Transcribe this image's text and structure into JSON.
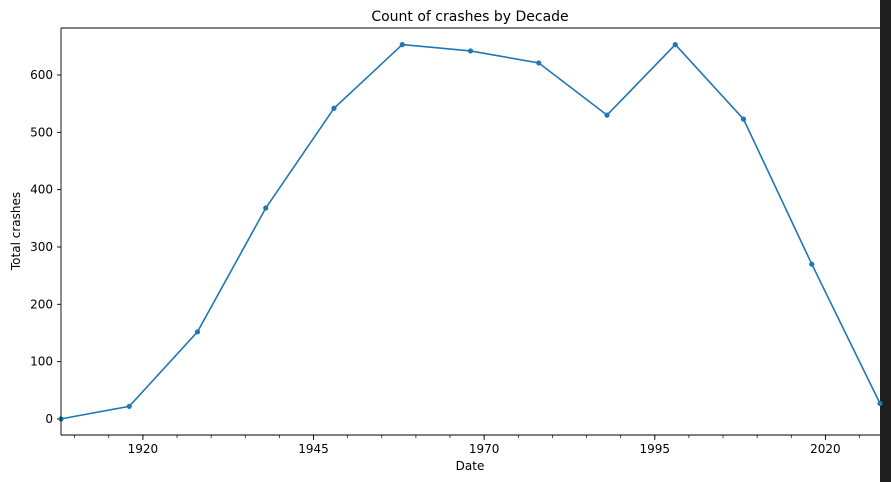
{
  "chart_data": {
    "type": "line",
    "title": "Count of crashes by Decade",
    "xlabel": "Date",
    "ylabel": "Total crashes",
    "x_ticks": [
      "1920",
      "1945",
      "1970",
      "1995",
      "2020"
    ],
    "y_ticks": [
      "0",
      "100",
      "200",
      "300",
      "400",
      "500",
      "600"
    ],
    "xlim": [
      1908,
      2028
    ],
    "ylim": [
      -28,
      682
    ],
    "grid": false,
    "series": [
      {
        "x": [
          1908,
          1918,
          1928,
          1938,
          1948,
          1958,
          1968,
          1978,
          1988,
          1998,
          2008,
          2018,
          2028
        ],
        "values": [
          0,
          22,
          152,
          368,
          542,
          653,
          642,
          621,
          530,
          653,
          523,
          270,
          27
        ],
        "color": "#1f77b4"
      }
    ]
  },
  "colors": {
    "background": "#1e1e1e",
    "plot_area": "#ffffff",
    "line": "#1f77b4"
  }
}
